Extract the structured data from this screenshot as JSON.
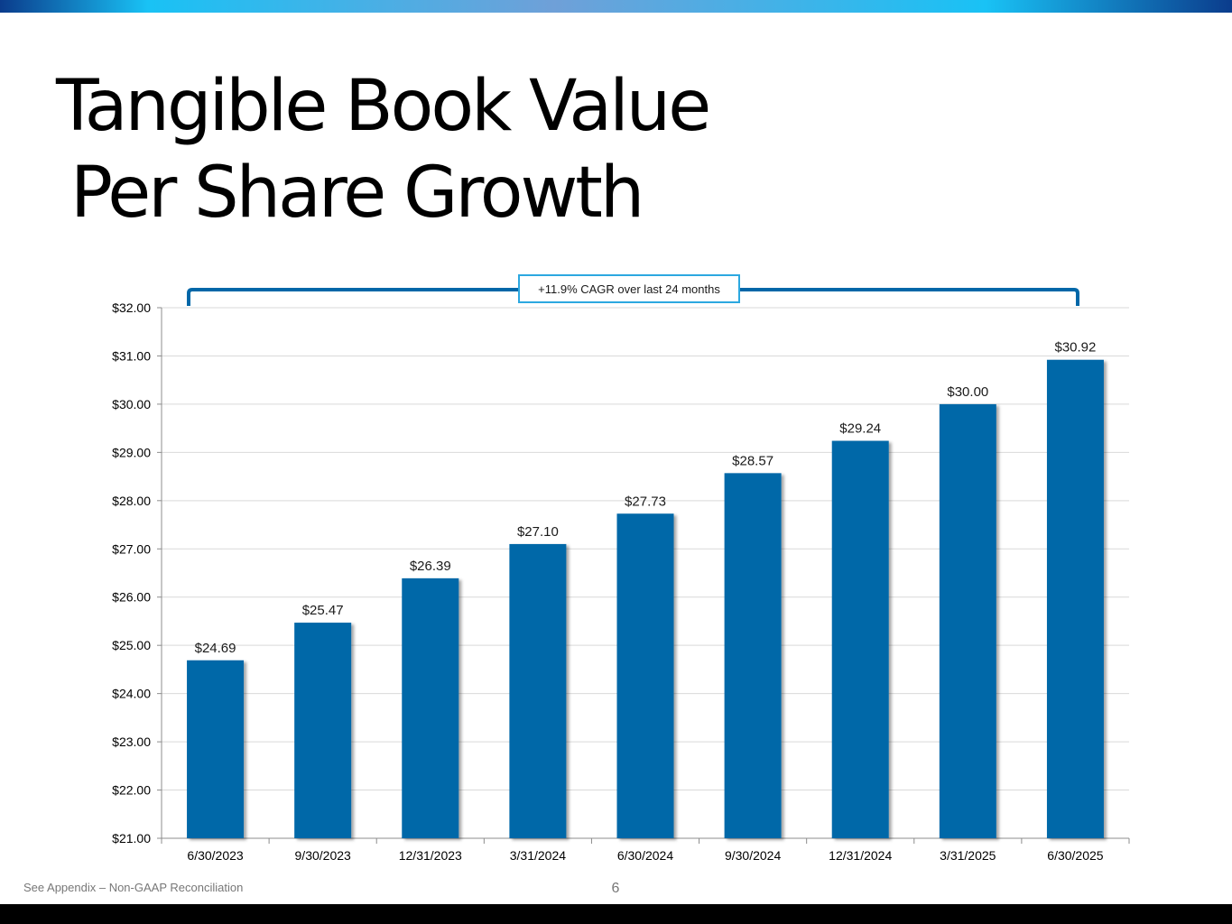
{
  "slide": {
    "title_line1": "Tangible Book Value",
    "title_line2": "Per Share Growth",
    "footnote": "See Appendix – Non-GAAP Reconciliation",
    "page_number": "6",
    "cagr_callout": "+11.9% CAGR over last 24 months"
  },
  "colors": {
    "bar": "#0067A8",
    "callout_border": "#2CA8E0",
    "bracket": "#0067A8",
    "gridline": "#D9D9D9",
    "top_bar_dark": "#0B3C8C",
    "top_bar_light": "#19C2F5"
  },
  "chart_data": {
    "type": "bar",
    "categories": [
      "6/30/2023",
      "9/30/2023",
      "12/31/2023",
      "3/31/2024",
      "6/30/2024",
      "9/30/2024",
      "12/31/2024",
      "3/31/2025",
      "6/30/2025"
    ],
    "values": [
      24.69,
      25.47,
      26.39,
      27.1,
      27.73,
      28.57,
      29.24,
      30.0,
      30.92
    ],
    "value_labels": [
      "$24.69",
      "$25.47",
      "$26.39",
      "$27.10",
      "$27.73",
      "$28.57",
      "$29.24",
      "$30.00",
      "$30.92"
    ],
    "yticks": [
      21,
      22,
      23,
      24,
      25,
      26,
      27,
      28,
      29,
      30,
      31,
      32
    ],
    "ytick_labels": [
      "$21.00",
      "$22.00",
      "$23.00",
      "$24.00",
      "$25.00",
      "$26.00",
      "$27.00",
      "$28.00",
      "$29.00",
      "$30.00",
      "$31.00",
      "$32.00"
    ],
    "ylim": [
      21,
      32
    ],
    "grid": true,
    "legend": "none"
  }
}
